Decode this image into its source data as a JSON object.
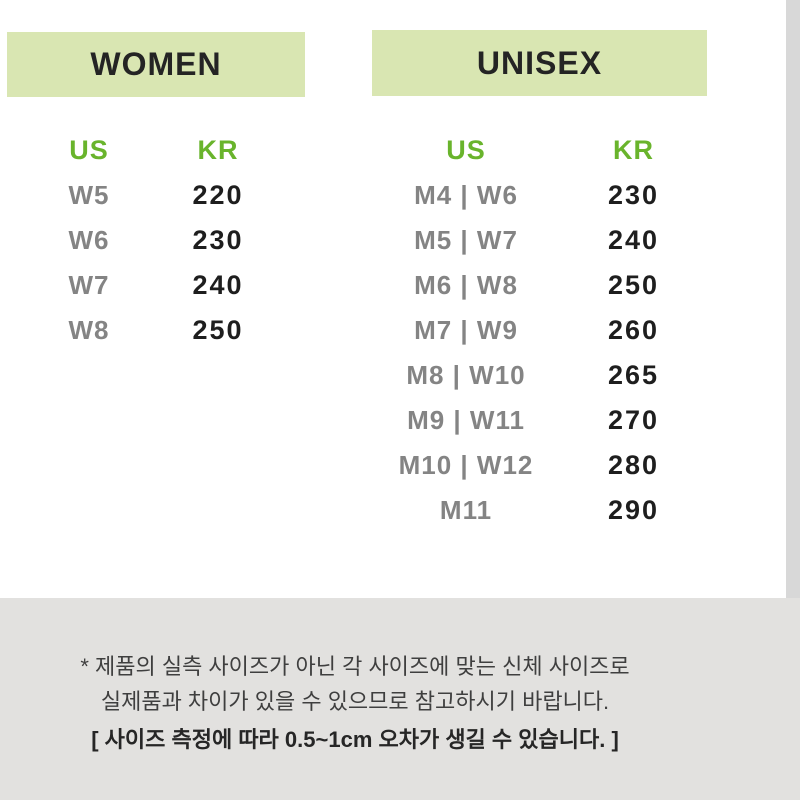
{
  "colors": {
    "accent_green_bg": "#d9e6b2",
    "accent_green_text": "#69b42c",
    "bottom_bg": "#e2e1df",
    "strip_bg": "#d8d8d8",
    "title_text": "#242424",
    "us_value_text": "#848484",
    "kr_value_text": "#1e1e1e",
    "note_text": "#3f3f3f",
    "note_bold_text": "#262626"
  },
  "women": {
    "title": "WOMEN",
    "columns": {
      "us": "US",
      "kr": "KR"
    },
    "rows": [
      {
        "us": "W5",
        "kr": "220"
      },
      {
        "us": "W6",
        "kr": "230"
      },
      {
        "us": "W7",
        "kr": "240"
      },
      {
        "us": "W8",
        "kr": "250"
      }
    ]
  },
  "unisex": {
    "title": "UNISEX",
    "columns": {
      "us": "US",
      "kr": "KR"
    },
    "rows": [
      {
        "us": "M4 | W6",
        "kr": "230"
      },
      {
        "us": "M5 | W7",
        "kr": "240"
      },
      {
        "us": "M6 | W8",
        "kr": "250"
      },
      {
        "us": "M7 | W9",
        "kr": "260"
      },
      {
        "us": "M8 | W10",
        "kr": "265"
      },
      {
        "us": "M9 | W11",
        "kr": "270"
      },
      {
        "us": "M10 | W12",
        "kr": "280"
      },
      {
        "us": "M11",
        "kr": "290"
      }
    ]
  },
  "notes": {
    "line1": "* 제품의 실측 사이즈가 아닌 각 사이즈에 맞는 신체 사이즈로",
    "line2": "실제품과 차이가 있을 수 있으므로 참고하시기 바랍니다.",
    "line3": "[ 사이즈 측정에 따라 0.5~1cm 오차가 생길 수 있습니다. ]"
  }
}
